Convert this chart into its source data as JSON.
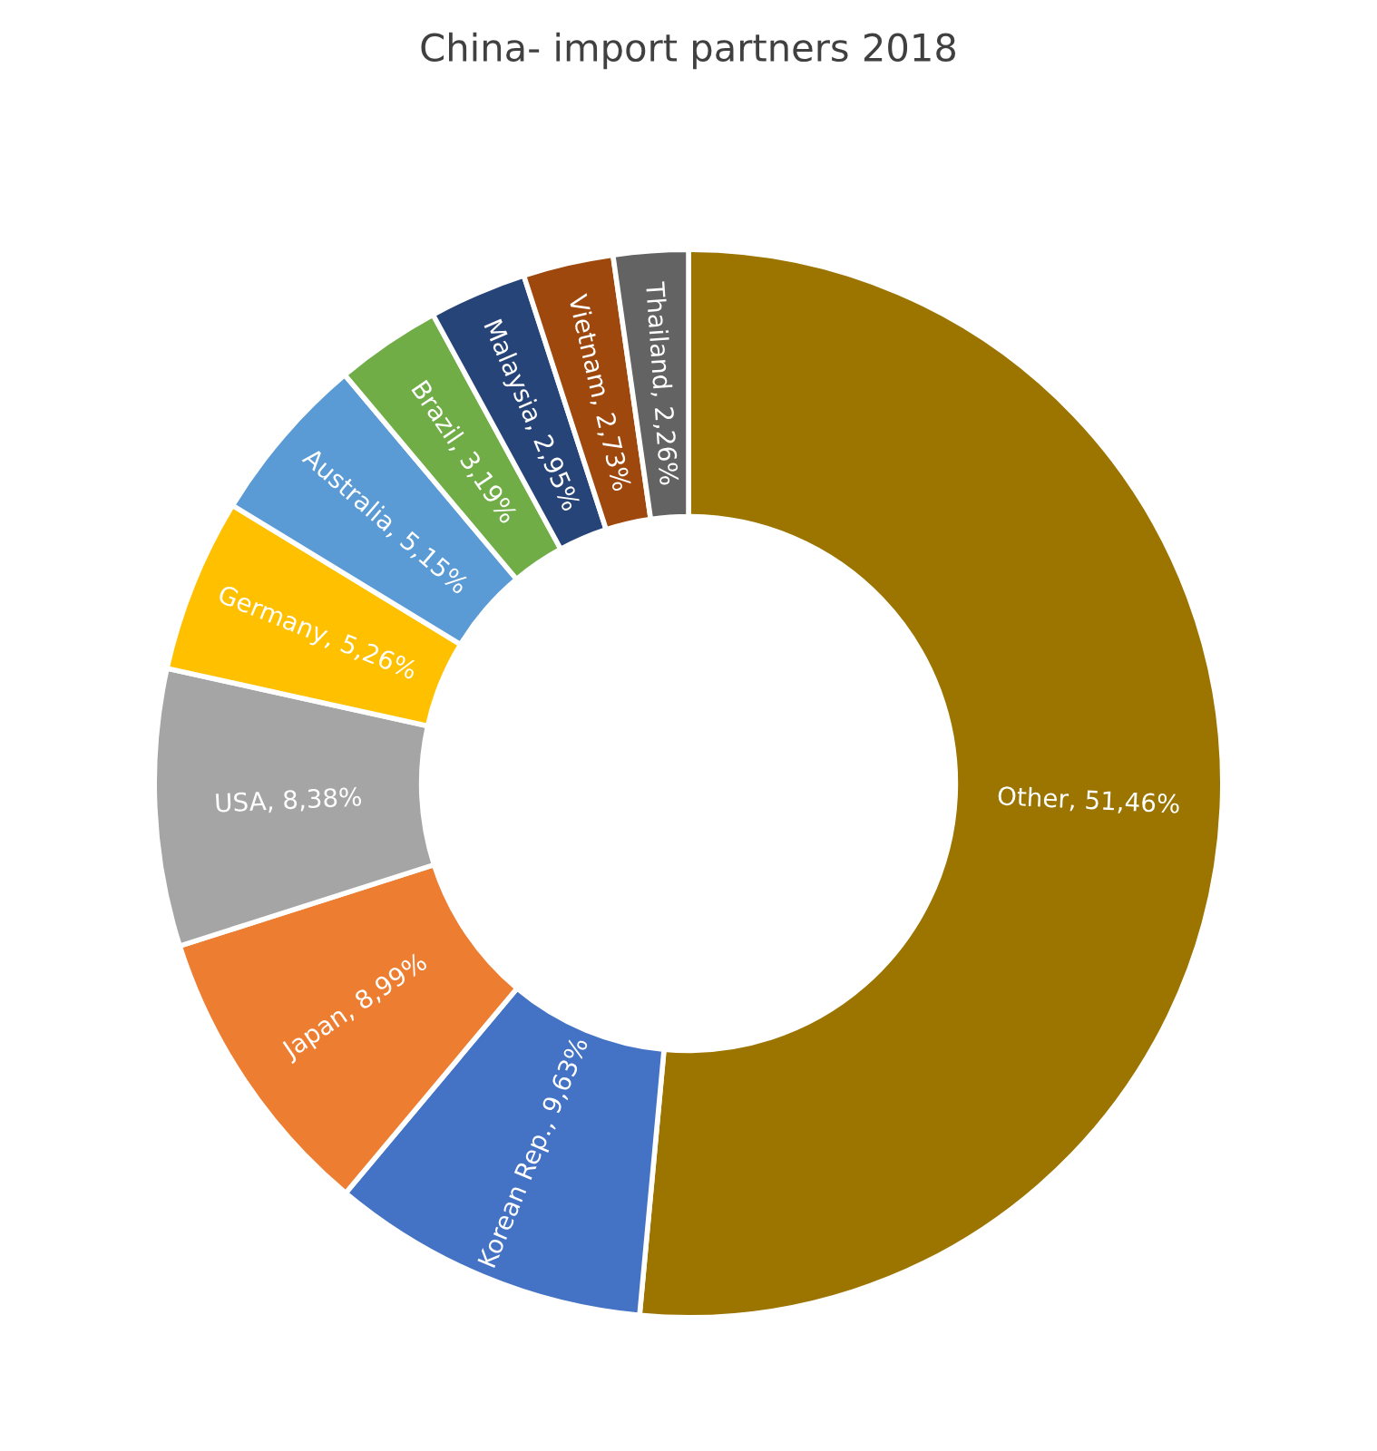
{
  "chart_data": {
    "type": "donut",
    "title": "China- import partners 2018",
    "categories": [
      "Other",
      "Korean Rep.",
      "Japan",
      "USA",
      "Germany",
      "Australia",
      "Brazil",
      "Malaysia",
      "Vietnam",
      "Thailand"
    ],
    "values": [
      51.46,
      9.63,
      8.99,
      8.38,
      5.26,
      5.15,
      3.19,
      2.95,
      2.73,
      2.26
    ],
    "value_labels": [
      "51,46%",
      "9,63%",
      "8,99%",
      "8,38%",
      "5,26%",
      "5,15%",
      "3,19%",
      "2,95%",
      "2,73%",
      "2,26%"
    ],
    "colors": [
      "#9c7500",
      "#4472c4",
      "#ed7d31",
      "#a5a5a5",
      "#ffc000",
      "#5b9bd5",
      "#70ad47",
      "#264478",
      "#9e480e",
      "#636363"
    ],
    "legend": false
  }
}
